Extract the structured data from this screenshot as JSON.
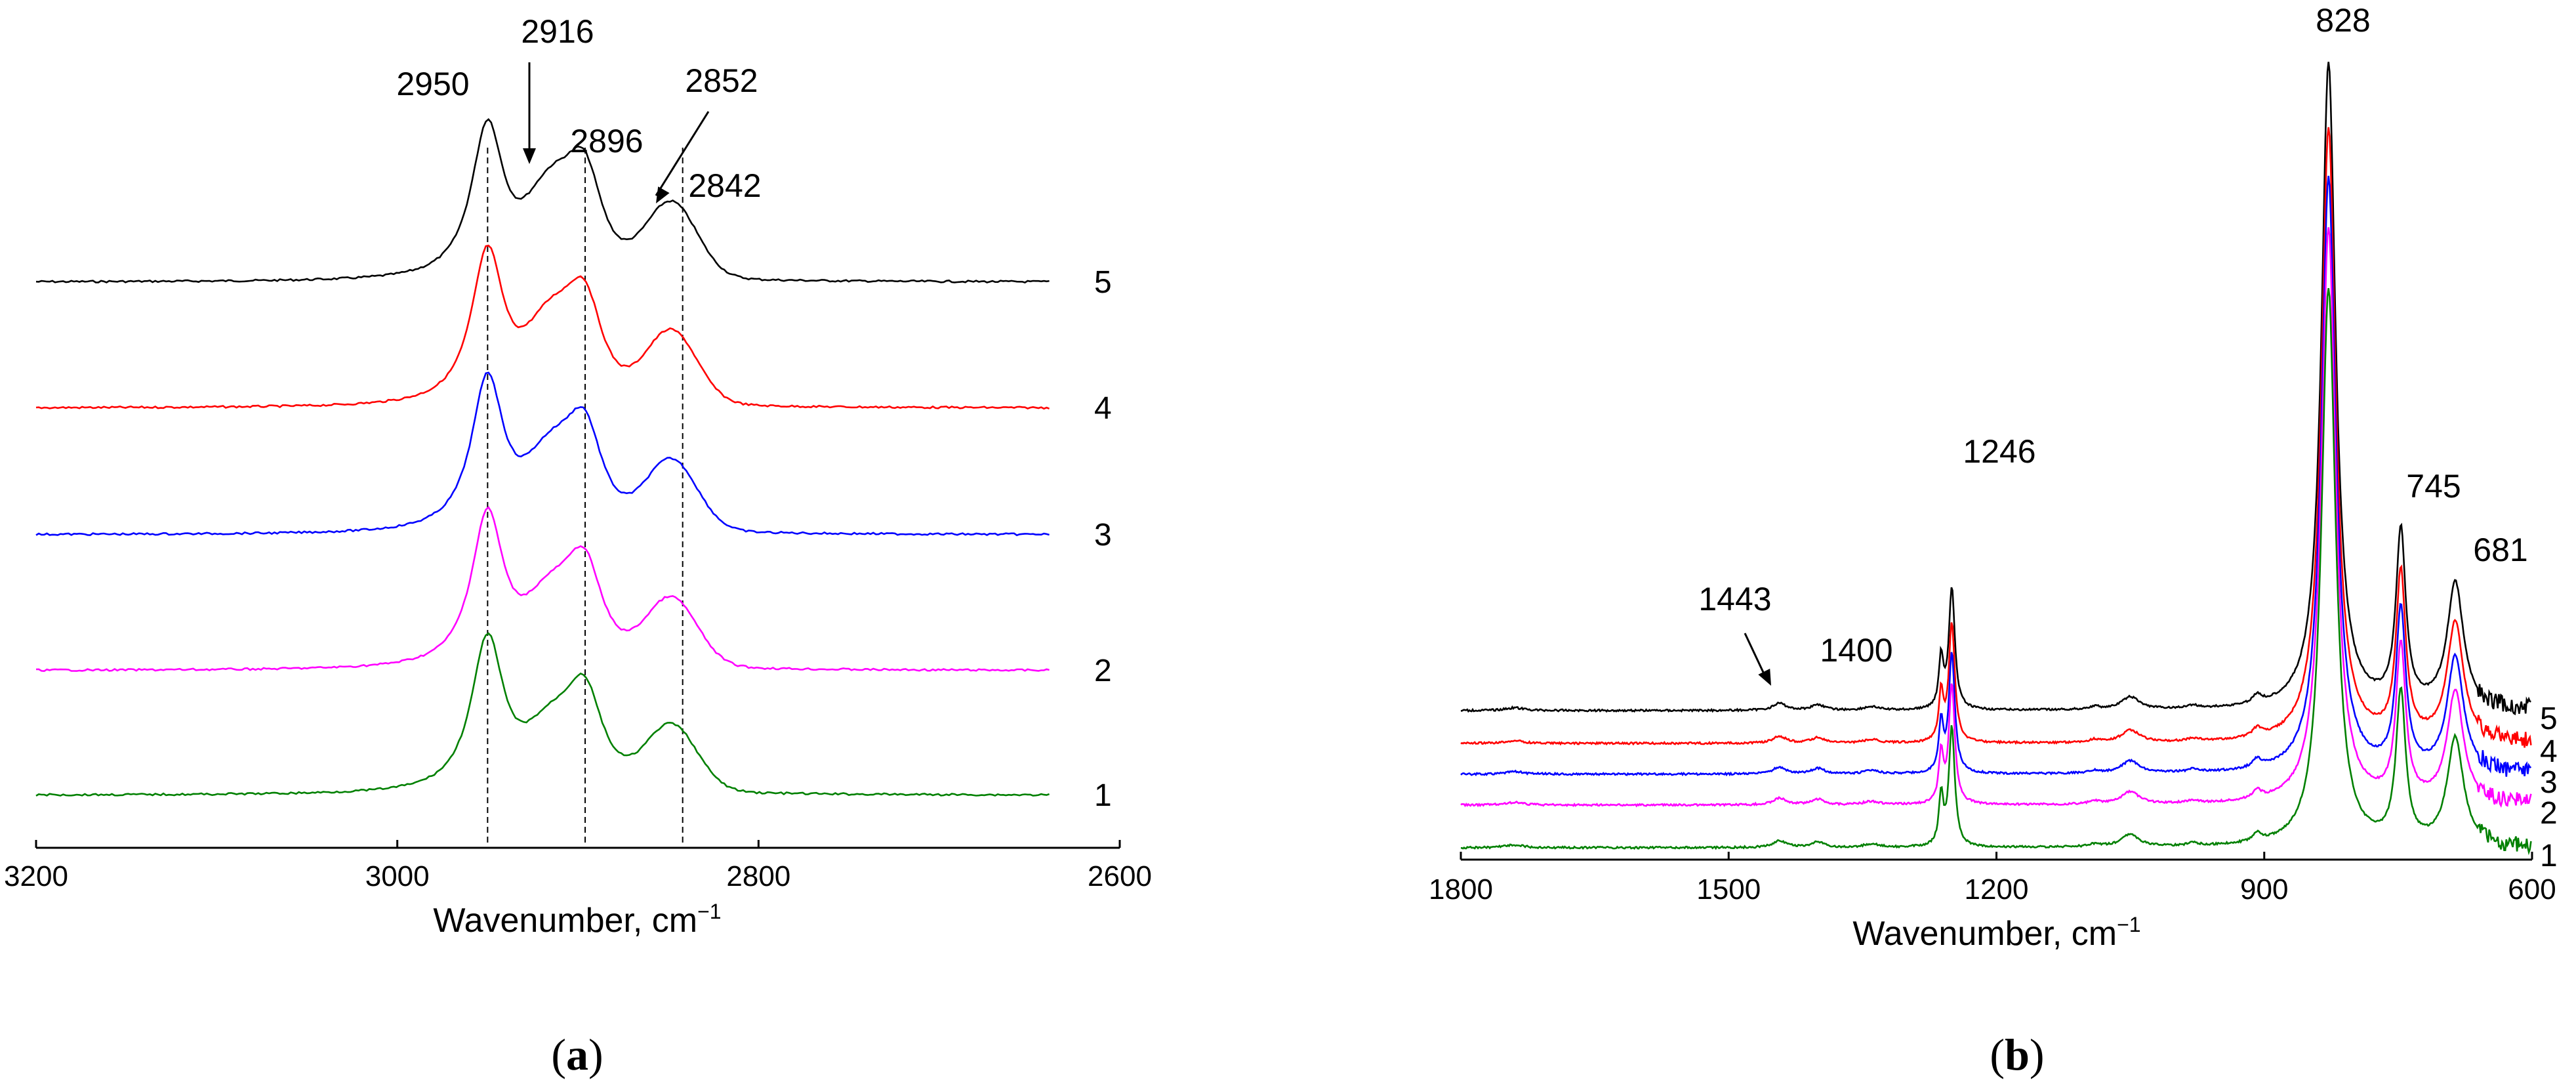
{
  "chart_data": [
    {
      "type": "line",
      "panel_label": "a",
      "xlabel": "Wavenumber, cm",
      "xlabel_sup": "−1",
      "xlim": [
        3200,
        2600
      ],
      "x_inverted": true,
      "xticks": [
        "3200",
        "3000",
        "2800",
        "2600"
      ],
      "y_ticks_shown": false,
      "traces": [
        {
          "label": "5",
          "color": "#000000",
          "offset": 4
        },
        {
          "label": "4",
          "color": "#ff0000",
          "offset": 3
        },
        {
          "label": "3",
          "color": "#0000ff",
          "offset": 2
        },
        {
          "label": "2",
          "color": "#ff00ff",
          "offset": 1
        },
        {
          "label": "1",
          "color": "#008000",
          "offset": 0
        }
      ],
      "reference_lines": [
        2950,
        2896,
        2842
      ],
      "annotations": [
        {
          "text": "2950",
          "x": 2950,
          "arrow": false
        },
        {
          "text": "2916",
          "x": 2916,
          "arrow": true
        },
        {
          "text": "2896",
          "x": 2896,
          "arrow": false
        },
        {
          "text": "2852",
          "x": 2852,
          "arrow": true
        },
        {
          "text": "2842",
          "x": 2842,
          "arrow": false
        }
      ]
    },
    {
      "type": "line",
      "panel_label": "b",
      "xlabel": "Wavenumber, cm",
      "xlabel_sup": "−1",
      "xlim": [
        1800,
        600
      ],
      "x_inverted": true,
      "xticks": [
        "1800",
        "1500",
        "1200",
        "900",
        "600"
      ],
      "y_ticks_shown": false,
      "traces": [
        {
          "label": "5",
          "color": "#000000",
          "offset": 4
        },
        {
          "label": "4",
          "color": "#ff0000",
          "offset": 3
        },
        {
          "label": "3",
          "color": "#0000ff",
          "offset": 2
        },
        {
          "label": "2",
          "color": "#ff00ff",
          "offset": 1
        },
        {
          "label": "1",
          "color": "#008000",
          "offset": 0
        }
      ],
      "annotations": [
        {
          "text": "1443",
          "x": 1443,
          "arrow": true
        },
        {
          "text": "1400",
          "x": 1400,
          "arrow": false
        },
        {
          "text": "1246",
          "x": 1246,
          "arrow": false
        },
        {
          "text": "828",
          "x": 828,
          "arrow": false
        },
        {
          "text": "745",
          "x": 745,
          "arrow": false
        },
        {
          "text": "681",
          "x": 681,
          "arrow": false
        }
      ]
    }
  ]
}
